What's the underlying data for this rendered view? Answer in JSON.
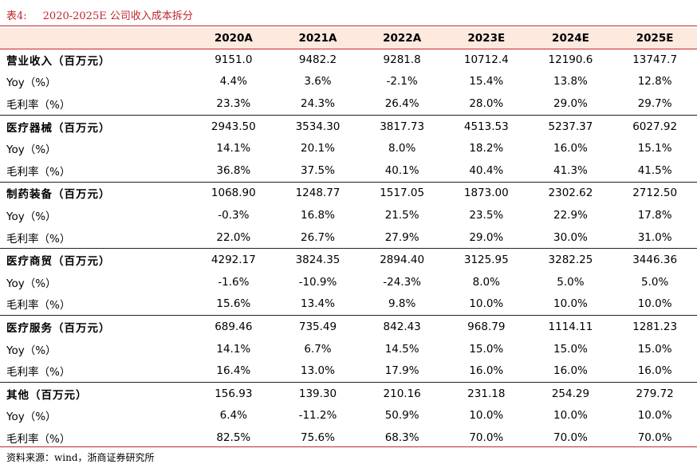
{
  "title": {
    "label": "表4:",
    "text": "2020-2025E 公司收入成本拆分"
  },
  "columns": [
    "2020A",
    "2021A",
    "2022A",
    "2023E",
    "2024E",
    "2025E"
  ],
  "groups": [
    {
      "label": "营业收入（百万元）",
      "values": [
        "9151.0",
        "9482.2",
        "9281.8",
        "10712.4",
        "12190.6",
        "13747.7"
      ],
      "yoy_label": "Yoy（%）",
      "yoy": [
        "4.4%",
        "3.6%",
        "-2.1%",
        "15.4%",
        "13.8%",
        "12.8%"
      ],
      "gm_label": "毛利率（%）",
      "gm": [
        "23.3%",
        "24.3%",
        "26.4%",
        "28.0%",
        "29.0%",
        "29.7%"
      ]
    },
    {
      "label": "医疗器械（百万元）",
      "values": [
        "2943.50",
        "3534.30",
        "3817.73",
        "4513.53",
        "5237.37",
        "6027.92"
      ],
      "yoy_label": "Yoy（%）",
      "yoy": [
        "14.1%",
        "20.1%",
        "8.0%",
        "18.2%",
        "16.0%",
        "15.1%"
      ],
      "gm_label": "毛利率（%）",
      "gm": [
        "36.8%",
        "37.5%",
        "40.1%",
        "40.4%",
        "41.3%",
        "41.5%"
      ]
    },
    {
      "label": "制药装备（百万元）",
      "values": [
        "1068.90",
        "1248.77",
        "1517.05",
        "1873.00",
        "2302.62",
        "2712.50"
      ],
      "yoy_label": "Yoy（%）",
      "yoy": [
        "-0.3%",
        "16.8%",
        "21.5%",
        "23.5%",
        "22.9%",
        "17.8%"
      ],
      "gm_label": "毛利率（%）",
      "gm": [
        "22.0%",
        "26.7%",
        "27.9%",
        "29.0%",
        "30.0%",
        "31.0%"
      ]
    },
    {
      "label": "医疗商贸（百万元）",
      "values": [
        "4292.17",
        "3824.35",
        "2894.40",
        "3125.95",
        "3282.25",
        "3446.36"
      ],
      "yoy_label": "Yoy（%）",
      "yoy": [
        "-1.6%",
        "-10.9%",
        "-24.3%",
        "8.0%",
        "5.0%",
        "5.0%"
      ],
      "gm_label": "毛利率（%）",
      "gm": [
        "15.6%",
        "13.4%",
        "9.8%",
        "10.0%",
        "10.0%",
        "10.0%"
      ]
    },
    {
      "label": "医疗服务（百万元）",
      "values": [
        "689.46",
        "735.49",
        "842.43",
        "968.79",
        "1114.11",
        "1281.23"
      ],
      "yoy_label": "Yoy（%）",
      "yoy": [
        "14.1%",
        "6.7%",
        "14.5%",
        "15.0%",
        "15.0%",
        "15.0%"
      ],
      "gm_label": "毛利率（%）",
      "gm": [
        "16.4%",
        "13.0%",
        "17.9%",
        "16.0%",
        "16.0%",
        "16.0%"
      ]
    },
    {
      "label": "其他（百万元）",
      "values": [
        "156.93",
        "139.30",
        "210.16",
        "231.18",
        "254.29",
        "279.72"
      ],
      "yoy_label": "Yoy（%）",
      "yoy": [
        "6.4%",
        "-11.2%",
        "50.9%",
        "10.0%",
        "10.0%",
        "10.0%"
      ],
      "gm_label": "毛利率（%）",
      "gm": [
        "82.5%",
        "75.6%",
        "68.3%",
        "70.0%",
        "70.0%",
        "70.0%"
      ]
    }
  ],
  "source": "资料来源：wind，浙商证券研究所",
  "colors": {
    "accent_red": "#c0262d",
    "header_fill": "#fde9de"
  }
}
